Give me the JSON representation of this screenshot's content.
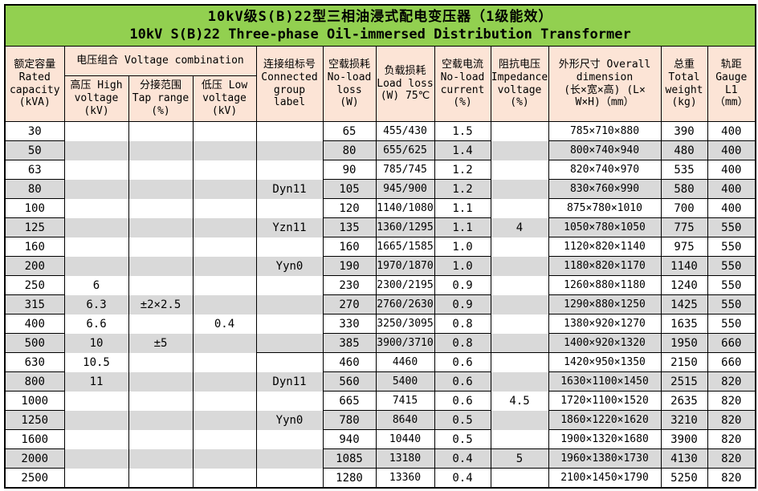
{
  "colors": {
    "title_bg": "#92D050",
    "header_bg": "#FCE4D6",
    "stripe": "#D9D9D9",
    "border": "#000000",
    "text": "#000000"
  },
  "title": {
    "zh": "10kV级S(B)22型三相油浸式配电变压器（1级能效）",
    "en": "10kV S(B)22 Three-phase Oil-immersed Distribution Transformer"
  },
  "headers": {
    "rated_capacity": "额定容量\nRated\ncapacity\n(kVA)",
    "voltage_combination": "电压组合 Voltage combination",
    "high_voltage": "高压 High\nvoltage\n(kV)",
    "tap_range": "分接范围\nTap range\n(%)",
    "low_voltage": "低压 Low\nvoltage\n(kV)",
    "connected_group": "连接组标号\nConnected\ngroup\nlabel",
    "no_load_loss": "空载损耗\nNo-load\nloss\n(W)",
    "load_loss": "负载损耗\nLoad loss\n(W) 75℃",
    "no_load_current": "空载电流\nNo-load\ncurrent\n(%)",
    "impedance_voltage": "阻抗电压\nImpedance\nvoltage\n(%)",
    "overall_dimension": "外形尺寸 Overall\ndimension\n(长×宽×高) (L×\nW×H)（mm）",
    "total_weight": "总重\nTotal\nweight\n(kg)",
    "gauge": "轨距\nGauge\nL1\n（mm）"
  },
  "rows": [
    {
      "capacity": "30",
      "hv": "",
      "tap": "",
      "lv": "",
      "group": "",
      "no_load_loss": "65",
      "load_loss": "455/430",
      "no_load_current": "1.5",
      "impedance": "",
      "dimension": "785×710×880",
      "weight": "390",
      "gauge": "400"
    },
    {
      "capacity": "50",
      "hv": "",
      "tap": "",
      "lv": "",
      "group": "",
      "no_load_loss": "80",
      "load_loss": "655/625",
      "no_load_current": "1.4",
      "impedance": "",
      "dimension": "800×740×940",
      "weight": "480",
      "gauge": "400"
    },
    {
      "capacity": "63",
      "hv": "",
      "tap": "",
      "lv": "",
      "group": "",
      "no_load_loss": "90",
      "load_loss": "785/745",
      "no_load_current": "1.2",
      "impedance": "",
      "dimension": "820×740×970",
      "weight": "535",
      "gauge": "400"
    },
    {
      "capacity": "80",
      "hv": "",
      "tap": "",
      "lv": "",
      "group": "Dyn11",
      "no_load_loss": "105",
      "load_loss": "945/900",
      "no_load_current": "1.2",
      "impedance": "",
      "dimension": "830×760×990",
      "weight": "580",
      "gauge": "400"
    },
    {
      "capacity": "100",
      "hv": "",
      "tap": "",
      "lv": "",
      "group": "",
      "no_load_loss": "120",
      "load_loss": "1140/1080",
      "no_load_current": "1.1",
      "impedance": "",
      "dimension": "875×780×1010",
      "weight": "700",
      "gauge": "400"
    },
    {
      "capacity": "125",
      "hv": "",
      "tap": "",
      "lv": "",
      "group": "Yzn11",
      "no_load_loss": "135",
      "load_loss": "1360/1295",
      "no_load_current": "1.1",
      "impedance": "4",
      "dimension": "1050×780×1050",
      "weight": "775",
      "gauge": "550"
    },
    {
      "capacity": "160",
      "hv": "",
      "tap": "",
      "lv": "",
      "group": "",
      "no_load_loss": "160",
      "load_loss": "1665/1585",
      "no_load_current": "1.0",
      "impedance": "",
      "dimension": "1120×820×1140",
      "weight": "975",
      "gauge": "550"
    },
    {
      "capacity": "200",
      "hv": "",
      "tap": "",
      "lv": "",
      "group": "Yyn0",
      "no_load_loss": "190",
      "load_loss": "1970/1870",
      "no_load_current": "1.0",
      "impedance": "",
      "dimension": "1180×820×1170",
      "weight": "1140",
      "gauge": "550"
    },
    {
      "capacity": "250",
      "hv": "6",
      "tap": "",
      "lv": "",
      "group": "",
      "no_load_loss": "230",
      "load_loss": "2300/2195",
      "no_load_current": "0.9",
      "impedance": "",
      "dimension": "1260×880×1180",
      "weight": "1240",
      "gauge": "550"
    },
    {
      "capacity": "315",
      "hv": "6.3",
      "tap": "±2×2.5",
      "lv": "",
      "group": "",
      "no_load_loss": "270",
      "load_loss": "2760/2630",
      "no_load_current": "0.9",
      "impedance": "",
      "dimension": "1290×880×1250",
      "weight": "1425",
      "gauge": "550"
    },
    {
      "capacity": "400",
      "hv": "6.6",
      "tap": "",
      "lv": "0.4",
      "group": "",
      "no_load_loss": "330",
      "load_loss": "3250/3095",
      "no_load_current": "0.8",
      "impedance": "",
      "dimension": "1380×920×1270",
      "weight": "1635",
      "gauge": "550"
    },
    {
      "capacity": "500",
      "hv": "10",
      "tap": "±5",
      "lv": "",
      "group": "",
      "no_load_loss": "385",
      "load_loss": "3900/3710",
      "no_load_current": "0.8",
      "impedance": "",
      "dimension": "1400×920×1320",
      "weight": "1950",
      "gauge": "660"
    },
    {
      "capacity": "630",
      "hv": "10.5",
      "tap": "",
      "lv": "",
      "group": "",
      "no_load_loss": "460",
      "load_loss": "4460",
      "no_load_current": "0.6",
      "impedance": "",
      "dimension": "1420×950×1350",
      "weight": "2150",
      "gauge": "660"
    },
    {
      "capacity": "800",
      "hv": "11",
      "tap": "",
      "lv": "",
      "group": "Dyn11",
      "no_load_loss": "560",
      "load_loss": "5400",
      "no_load_current": "0.6",
      "impedance": "",
      "dimension": "1630×1100×1450",
      "weight": "2515",
      "gauge": "820"
    },
    {
      "capacity": "1000",
      "hv": "",
      "tap": "",
      "lv": "",
      "group": "",
      "no_load_loss": "665",
      "load_loss": "7415",
      "no_load_current": "0.6",
      "impedance": "4.5",
      "dimension": "1720×1100×1520",
      "weight": "2635",
      "gauge": "820"
    },
    {
      "capacity": "1250",
      "hv": "",
      "tap": "",
      "lv": "",
      "group": "Yyn0",
      "no_load_loss": "780",
      "load_loss": "8640",
      "no_load_current": "0.5",
      "impedance": "",
      "dimension": "1860×1220×1620",
      "weight": "3210",
      "gauge": "820"
    },
    {
      "capacity": "1600",
      "hv": "",
      "tap": "",
      "lv": "",
      "group": "",
      "no_load_loss": "940",
      "load_loss": "10440",
      "no_load_current": "0.5",
      "impedance": "",
      "dimension": "1900×1320×1680",
      "weight": "3900",
      "gauge": "820"
    },
    {
      "capacity": "2000",
      "hv": "",
      "tap": "",
      "lv": "",
      "group": "",
      "no_load_loss": "1085",
      "load_loss": "13180",
      "no_load_current": "0.4",
      "impedance": "5",
      "dimension": "1960×1380×1730",
      "weight": "4130",
      "gauge": "820"
    },
    {
      "capacity": "2500",
      "hv": "",
      "tap": "",
      "lv": "",
      "group": "",
      "no_load_loss": "1280",
      "load_loss": "13360",
      "no_load_current": "0.4",
      "impedance": "",
      "dimension": "2100×1450×1790",
      "weight": "5250",
      "gauge": "820"
    }
  ]
}
